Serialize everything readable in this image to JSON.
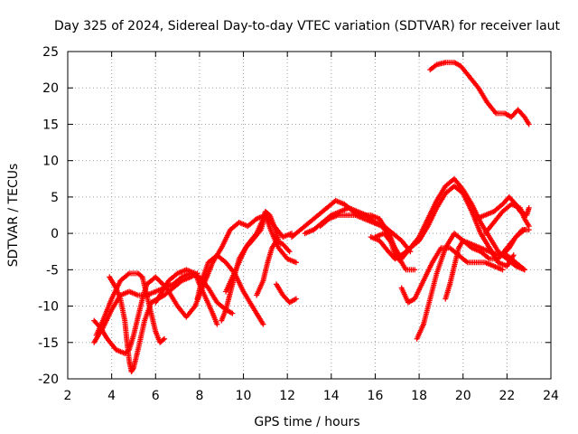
{
  "chart_data": {
    "type": "scatter",
    "title": "Day 325 of 2024, Sidereal Day-to-day VTEC variation (SDTVAR) for receiver laut",
    "xlabel": "GPS time / hours",
    "ylabel": "SDTVAR / TECUs",
    "xlim": [
      2,
      24
    ],
    "ylim": [
      -20,
      25
    ],
    "xticks": [
      2,
      4,
      6,
      8,
      10,
      12,
      14,
      16,
      18,
      20,
      22,
      24
    ],
    "yticks": [
      -20,
      -15,
      -10,
      -5,
      0,
      5,
      10,
      15,
      20,
      25
    ],
    "grid": true,
    "marker": "+",
    "color": "#ff0000",
    "series": [
      {
        "name": "s1",
        "points": [
          [
            3.2,
            -15
          ],
          [
            3.6,
            -13
          ],
          [
            4.0,
            -10.5
          ],
          [
            4.4,
            -8.5
          ],
          [
            4.8,
            -8
          ],
          [
            5.2,
            -8.5
          ],
          [
            5.6,
            -8.5
          ],
          [
            6.0,
            -8
          ],
          [
            6.4,
            -7.5
          ],
          [
            6.8,
            -7
          ],
          [
            7.2,
            -6
          ],
          [
            7.6,
            -5.5
          ],
          [
            8.0,
            -6
          ],
          [
            8.4,
            -7.5
          ],
          [
            8.8,
            -9.5
          ],
          [
            9.2,
            -10.5
          ],
          [
            9.5,
            -11
          ]
        ]
      },
      {
        "name": "s2",
        "points": [
          [
            3.2,
            -12
          ],
          [
            3.5,
            -13
          ],
          [
            3.8,
            -14.5
          ],
          [
            4.2,
            -16
          ],
          [
            4.6,
            -16.5
          ],
          [
            4.8,
            -16
          ],
          [
            5.0,
            -14
          ],
          [
            5.2,
            -11.5
          ],
          [
            5.4,
            -9
          ],
          [
            5.6,
            -7
          ],
          [
            6.0,
            -6
          ],
          [
            6.5,
            -7.5
          ],
          [
            7.0,
            -10
          ],
          [
            7.4,
            -11.5
          ],
          [
            7.8,
            -10
          ],
          [
            8.2,
            -7
          ],
          [
            8.6,
            -4
          ],
          [
            9.0,
            -2
          ],
          [
            9.4,
            0.5
          ],
          [
            9.8,
            1.5
          ],
          [
            10.2,
            1
          ],
          [
            10.6,
            2
          ],
          [
            11.0,
            2.5
          ],
          [
            11.4,
            1
          ],
          [
            11.8,
            -0.5
          ],
          [
            12.2,
            0
          ]
        ]
      },
      {
        "name": "s3",
        "points": [
          [
            3.3,
            -14
          ],
          [
            3.6,
            -12
          ],
          [
            4.0,
            -9
          ],
          [
            4.4,
            -6.5
          ],
          [
            4.8,
            -5.5
          ],
          [
            5.2,
            -5.5
          ],
          [
            5.4,
            -6
          ],
          [
            5.6,
            -8.5
          ],
          [
            5.8,
            -11
          ],
          [
            6.0,
            -13.5
          ],
          [
            6.2,
            -15
          ],
          [
            6.4,
            -14.5
          ]
        ]
      },
      {
        "name": "s4",
        "points": [
          [
            3.9,
            -6
          ],
          [
            4.2,
            -7.5
          ],
          [
            4.4,
            -9
          ],
          [
            4.6,
            -12
          ],
          [
            4.7,
            -15
          ],
          [
            4.8,
            -17.5
          ],
          [
            4.9,
            -19
          ],
          [
            5.0,
            -18.5
          ],
          [
            5.2,
            -16
          ],
          [
            5.5,
            -12
          ],
          [
            5.8,
            -9.5
          ],
          [
            6.1,
            -9
          ],
          [
            6.4,
            -8.5
          ],
          [
            6.8,
            -7.5
          ],
          [
            7.2,
            -6.5
          ],
          [
            7.6,
            -6
          ],
          [
            7.9,
            -5.5
          ]
        ]
      },
      {
        "name": "s5",
        "points": [
          [
            6.0,
            -9.5
          ],
          [
            6.3,
            -8
          ],
          [
            6.6,
            -6.5
          ],
          [
            7.0,
            -5.5
          ],
          [
            7.4,
            -5
          ],
          [
            7.8,
            -5.5
          ],
          [
            8.0,
            -7
          ],
          [
            8.3,
            -9
          ],
          [
            8.6,
            -11
          ],
          [
            8.8,
            -12.5
          ]
        ]
      },
      {
        "name": "s6",
        "points": [
          [
            7.9,
            -9
          ],
          [
            8.1,
            -6.5
          ],
          [
            8.4,
            -4
          ],
          [
            8.8,
            -3
          ],
          [
            9.2,
            -4
          ],
          [
            9.6,
            -5.5
          ],
          [
            10.0,
            -8
          ],
          [
            10.4,
            -10
          ],
          [
            10.6,
            -11
          ],
          [
            10.9,
            -12.5
          ]
        ]
      },
      {
        "name": "s7",
        "points": [
          [
            9.0,
            -12
          ],
          [
            9.2,
            -10.5
          ],
          [
            9.5,
            -7
          ],
          [
            9.8,
            -3.5
          ],
          [
            10.2,
            -1.5
          ],
          [
            10.6,
            0
          ],
          [
            10.9,
            2
          ],
          [
            11.0,
            3
          ],
          [
            11.2,
            2.5
          ],
          [
            11.4,
            1
          ],
          [
            11.6,
            -1
          ]
        ]
      },
      {
        "name": "s8",
        "points": [
          [
            9.2,
            -8
          ],
          [
            9.5,
            -6
          ],
          [
            9.8,
            -4
          ],
          [
            10.1,
            -2
          ],
          [
            10.4,
            -1
          ],
          [
            10.8,
            0.5
          ],
          [
            11.0,
            2.5
          ],
          [
            11.3,
            0
          ],
          [
            11.6,
            -2
          ],
          [
            12.0,
            -3.5
          ],
          [
            12.4,
            -4
          ]
        ]
      },
      {
        "name": "s9",
        "points": [
          [
            10.6,
            -8.5
          ],
          [
            10.9,
            -6.5
          ],
          [
            11.1,
            -4
          ],
          [
            11.3,
            -2
          ],
          [
            11.5,
            -1
          ],
          [
            11.8,
            -1.5
          ],
          [
            12.1,
            -2.5
          ]
        ]
      },
      {
        "name": "s10",
        "points": [
          [
            11.5,
            -7
          ],
          [
            11.8,
            -8.5
          ],
          [
            12.1,
            -9.5
          ],
          [
            12.4,
            -9
          ]
        ]
      },
      {
        "name": "s11",
        "points": [
          [
            12.2,
            -0.5
          ],
          [
            12.6,
            0.5
          ],
          [
            13.0,
            1.5
          ],
          [
            13.4,
            2.5
          ],
          [
            13.8,
            3.5
          ],
          [
            14.2,
            4.5
          ],
          [
            14.6,
            4
          ],
          [
            15.0,
            3
          ],
          [
            15.4,
            2.5
          ],
          [
            15.8,
            2.5
          ],
          [
            16.2,
            2
          ],
          [
            16.6,
            0
          ],
          [
            16.9,
            -3
          ],
          [
            17.2,
            -4
          ]
        ]
      },
      {
        "name": "s12",
        "points": [
          [
            12.8,
            0
          ],
          [
            13.2,
            0.5
          ],
          [
            13.6,
            1.5
          ],
          [
            14.0,
            2.5
          ],
          [
            14.4,
            3
          ],
          [
            14.8,
            3.5
          ],
          [
            15.2,
            3
          ],
          [
            15.6,
            2.5
          ],
          [
            16.0,
            1.5
          ],
          [
            16.4,
            1
          ],
          [
            16.8,
            0
          ],
          [
            17.2,
            -1
          ],
          [
            17.6,
            -2.5
          ]
        ]
      },
      {
        "name": "s13",
        "points": [
          [
            13.5,
            1
          ],
          [
            13.9,
            2
          ],
          [
            14.3,
            2.5
          ],
          [
            14.7,
            2.5
          ],
          [
            15.1,
            2.5
          ],
          [
            15.5,
            2
          ],
          [
            15.9,
            1.5
          ],
          [
            16.3,
            1
          ],
          [
            16.7,
            -0.5
          ],
          [
            17.0,
            -3
          ],
          [
            17.4,
            -5
          ],
          [
            17.8,
            -5
          ]
        ]
      },
      {
        "name": "s14",
        "points": [
          [
            15.8,
            -0.5
          ],
          [
            16.2,
            -1
          ],
          [
            16.6,
            -2.5
          ],
          [
            16.9,
            -3.5
          ],
          [
            17.2,
            -3
          ],
          [
            17.6,
            -2
          ],
          [
            18.0,
            -1
          ],
          [
            18.4,
            1
          ],
          [
            18.8,
            3.5
          ],
          [
            19.2,
            5.5
          ],
          [
            19.6,
            6.5
          ],
          [
            20.0,
            5.5
          ],
          [
            20.4,
            3
          ],
          [
            20.8,
            0
          ],
          [
            21.2,
            -2
          ],
          [
            21.6,
            -4
          ],
          [
            22.0,
            -4.5
          ],
          [
            22.3,
            -3
          ]
        ]
      },
      {
        "name": "s15",
        "points": [
          [
            16.0,
            -0.5
          ],
          [
            16.4,
            0
          ],
          [
            16.8,
            -1.5
          ],
          [
            17.2,
            -3.5
          ],
          [
            17.6,
            -2
          ],
          [
            18.0,
            -0.5
          ],
          [
            18.4,
            2
          ],
          [
            18.8,
            4.5
          ],
          [
            19.2,
            6.5
          ],
          [
            19.6,
            7.5
          ],
          [
            20.0,
            6
          ],
          [
            20.4,
            4
          ],
          [
            20.8,
            1.5
          ],
          [
            21.2,
            -0.5
          ],
          [
            21.6,
            -2.5
          ],
          [
            22.0,
            -3.5
          ],
          [
            22.4,
            -4.5
          ],
          [
            22.8,
            -5
          ]
        ]
      },
      {
        "name": "s16",
        "points": [
          [
            17.2,
            -7.5
          ],
          [
            17.5,
            -9.5
          ],
          [
            17.8,
            -9
          ],
          [
            18.2,
            -6.5
          ],
          [
            18.6,
            -4
          ],
          [
            19.0,
            -2
          ],
          [
            19.4,
            -2
          ],
          [
            19.8,
            -3
          ],
          [
            20.2,
            -4
          ],
          [
            20.6,
            -4
          ],
          [
            21.0,
            -4
          ],
          [
            21.4,
            -4.5
          ],
          [
            21.8,
            -5
          ]
        ]
      },
      {
        "name": "s17",
        "points": [
          [
            17.9,
            -14.5
          ],
          [
            18.2,
            -12.5
          ],
          [
            18.5,
            -9
          ],
          [
            18.8,
            -5.5
          ],
          [
            19.2,
            -2
          ],
          [
            19.6,
            0
          ],
          [
            20.0,
            -1
          ],
          [
            20.4,
            -2
          ],
          [
            20.8,
            -2.5
          ],
          [
            21.2,
            -3.5
          ],
          [
            21.6,
            -3.5
          ],
          [
            22.0,
            -2
          ],
          [
            22.4,
            -0.5
          ],
          [
            22.8,
            0.5
          ]
        ]
      },
      {
        "name": "s18",
        "points": [
          [
            19.2,
            -9
          ],
          [
            19.4,
            -7
          ],
          [
            19.6,
            -4.5
          ],
          [
            19.8,
            -2
          ],
          [
            20.0,
            -1
          ],
          [
            20.4,
            -1.5
          ],
          [
            20.8,
            -2
          ],
          [
            21.2,
            -2.5
          ],
          [
            21.6,
            -3
          ],
          [
            22.0,
            -3
          ],
          [
            22.4,
            -4
          ],
          [
            22.8,
            -5
          ]
        ]
      },
      {
        "name": "s19",
        "points": [
          [
            20.6,
            2
          ],
          [
            21.0,
            2.5
          ],
          [
            21.4,
            3
          ],
          [
            21.8,
            4
          ],
          [
            22.1,
            5
          ],
          [
            22.4,
            4
          ],
          [
            22.6,
            3
          ],
          [
            22.9,
            2.5
          ],
          [
            23.0,
            3.5
          ]
        ]
      },
      {
        "name": "s20",
        "points": [
          [
            21.0,
            0
          ],
          [
            21.4,
            1.5
          ],
          [
            21.8,
            3
          ],
          [
            22.2,
            4
          ],
          [
            22.6,
            3.5
          ],
          [
            22.8,
            2
          ],
          [
            23.0,
            1
          ]
        ]
      },
      {
        "name": "s21",
        "points": [
          [
            21.8,
            -3
          ],
          [
            22.1,
            -2
          ],
          [
            22.4,
            -0.5
          ],
          [
            22.7,
            0.5
          ],
          [
            23.0,
            0.5
          ]
        ]
      },
      {
        "name": "s22",
        "points": [
          [
            18.5,
            22.5
          ],
          [
            18.8,
            23.2
          ],
          [
            19.2,
            23.5
          ],
          [
            19.6,
            23.5
          ],
          [
            19.9,
            23
          ],
          [
            20.3,
            21.5
          ],
          [
            20.7,
            20
          ],
          [
            21.1,
            18
          ],
          [
            21.5,
            16.5
          ],
          [
            21.9,
            16.5
          ],
          [
            22.2,
            16
          ],
          [
            22.5,
            17
          ],
          [
            22.8,
            16
          ],
          [
            23.0,
            15
          ]
        ]
      }
    ]
  }
}
